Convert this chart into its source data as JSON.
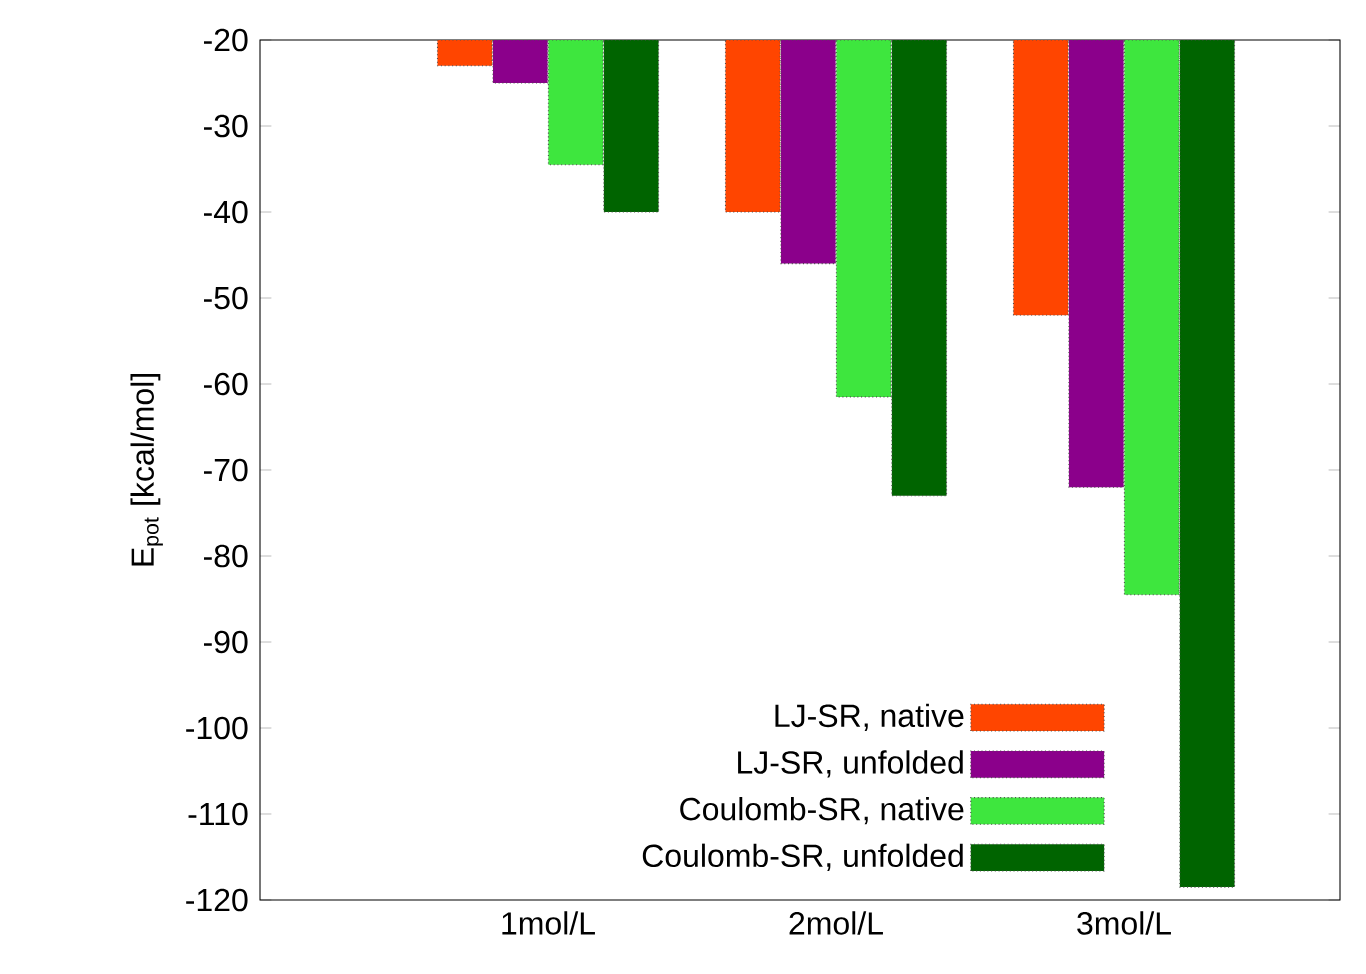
{
  "chart_data": {
    "type": "bar",
    "ylabel": "E$_{pot}$ [kcal/mol]",
    "categories": [
      "1mol/L",
      "2mol/L",
      "3mol/L"
    ],
    "series": [
      {
        "name": "LJ-SR, native",
        "color": "#ff4500",
        "values": [
          -23,
          -40,
          -52
        ]
      },
      {
        "name": "LJ-SR, unfolded",
        "color": "#8b008b",
        "values": [
          -25,
          -46,
          -72
        ]
      },
      {
        "name": "Coulomb-SR, native",
        "color": "#3ee63e",
        "values": [
          -34.5,
          -61.5,
          -84.5
        ]
      },
      {
        "name": "Coulomb-SR, unfolded",
        "color": "#006400",
        "values": [
          -40,
          -73,
          -118.5
        ]
      }
    ],
    "ylim": [
      -120,
      -20
    ],
    "yticks": [
      -120,
      -110,
      -100,
      -90,
      -80,
      -70,
      -60,
      -50,
      -40,
      -30,
      -20
    ],
    "grid": false,
    "legend": "bottom right"
  }
}
